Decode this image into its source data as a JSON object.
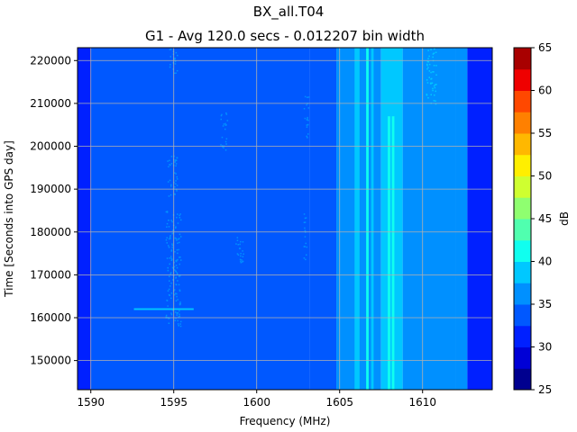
{
  "chart_data": {
    "type": "heatmap",
    "title": "BX_all.T04",
    "subtitle": "G1 - Avg 120.0 secs - 0.012207 bin width",
    "xlabel": "Frequency (MHz)",
    "ylabel": "Time [Seconds into GPS day]",
    "colorbar_label": "dB",
    "xlim": [
      1589.2,
      1614.2
    ],
    "ylim": [
      143200,
      223000
    ],
    "x_ticks": [
      1590,
      1595,
      1600,
      1605,
      1610
    ],
    "x_tick_labels": [
      "1590",
      "1595",
      "1600",
      "1605",
      "1610"
    ],
    "y_ticks": [
      150000,
      160000,
      170000,
      180000,
      190000,
      200000,
      210000,
      220000
    ],
    "y_tick_labels": [
      "150000",
      "160000",
      "170000",
      "180000",
      "190000",
      "200000",
      "210000",
      "220000"
    ],
    "colorbar": {
      "range": [
        25,
        65
      ],
      "ticks": [
        25,
        30,
        35,
        40,
        45,
        50,
        55,
        60,
        65
      ],
      "tick_labels": [
        "25",
        "30",
        "35",
        "40",
        "45",
        "50",
        "55",
        "60",
        "65"
      ],
      "levels": [
        25,
        27.5,
        30,
        32.5,
        35,
        37.5,
        40,
        42.5,
        45,
        47.5,
        50,
        52.5,
        55,
        57.5,
        60,
        62.5,
        65
      ],
      "colors": [
        "#00008f",
        "#0000d6",
        "#0020ff",
        "#0058ff",
        "#0090ff",
        "#00c8ff",
        "#10ffef",
        "#50ffaf",
        "#8fff70",
        "#cfff30",
        "#ffef00",
        "#ffb800",
        "#ff8000",
        "#ff4800",
        "#ef0000",
        "#a80000"
      ]
    },
    "frequency_bands": [
      {
        "x": [
          1589.2,
          1590.0
        ],
        "level_db": 31.5
      },
      {
        "x": [
          1590.0,
          1603.2
        ],
        "level_db": 33.8
      },
      {
        "x": [
          1603.2,
          1604.8
        ],
        "level_db": 34.5
      },
      {
        "x": [
          1604.8,
          1607.5
        ],
        "level_db": 36.5
      },
      {
        "x": [
          1607.5,
          1608.8
        ],
        "level_db": 37.5
      },
      {
        "x": [
          1608.8,
          1612.0
        ],
        "level_db": 36.8
      },
      {
        "x": [
          1612.0,
          1612.7
        ],
        "level_db": 35.5
      },
      {
        "x": [
          1612.7,
          1614.2
        ],
        "level_db": 31.5
      }
    ],
    "features": [
      {
        "kind": "line",
        "x": [
          1605.9,
          1606.2
        ],
        "y": [
          143200,
          223000
        ],
        "level_db": 39
      },
      {
        "kind": "line",
        "x": [
          1606.6,
          1606.75
        ],
        "y": [
          143200,
          223000
        ],
        "level_db": 40
      },
      {
        "kind": "line",
        "x": [
          1606.9,
          1607.05
        ],
        "y": [
          143200,
          223000
        ],
        "level_db": 39
      },
      {
        "kind": "line",
        "x": [
          1607.9,
          1608.05
        ],
        "y": [
          143200,
          207000
        ],
        "level_db": 40
      },
      {
        "kind": "line",
        "x": [
          1608.15,
          1608.3
        ],
        "y": [
          143200,
          207000
        ],
        "level_db": 40
      },
      {
        "kind": "line",
        "x": [
          1605.2,
          1605.35
        ],
        "y": [
          143200,
          223000
        ],
        "level_db": 37
      },
      {
        "kind": "cluster",
        "x": [
          1594.5,
          1595.4
        ],
        "y": [
          158000,
          185000
        ],
        "level_db": 36
      },
      {
        "kind": "cluster",
        "x": [
          1594.6,
          1595.2
        ],
        "y": [
          188000,
          198000
        ],
        "level_db": 36
      },
      {
        "kind": "cluster",
        "x": [
          1594.7,
          1595.2
        ],
        "y": [
          217000,
          223000
        ],
        "level_db": 36
      },
      {
        "kind": "cluster",
        "x": [
          1597.8,
          1598.2
        ],
        "y": [
          199000,
          208000
        ],
        "level_db": 36
      },
      {
        "kind": "cluster",
        "x": [
          1598.7,
          1599.2
        ],
        "y": [
          172000,
          179000
        ],
        "level_db": 36
      },
      {
        "kind": "cluster",
        "x": [
          1602.8,
          1603.0
        ],
        "y": [
          172000,
          185000
        ],
        "level_db": 37
      },
      {
        "kind": "cluster",
        "x": [
          1602.8,
          1603.1
        ],
        "y": [
          202000,
          212000
        ],
        "level_db": 37
      },
      {
        "kind": "cluster",
        "x": [
          1610.2,
          1610.8
        ],
        "y": [
          210000,
          223000
        ],
        "level_db": 37.5
      },
      {
        "kind": "hline",
        "x": [
          1592.6,
          1596.2
        ],
        "y": [
          161800,
          162200
        ],
        "level_db": 38
      }
    ]
  }
}
